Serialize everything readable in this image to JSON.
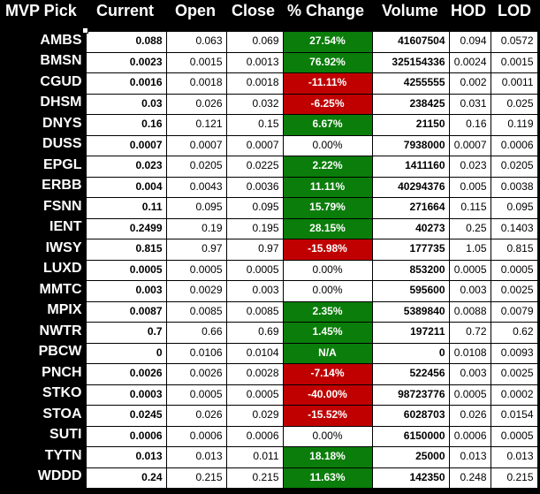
{
  "columns": [
    "MVP Pick",
    "Current",
    "Open",
    "Close",
    "% Change",
    "Volume",
    "HOD",
    "LOD"
  ],
  "colors": {
    "up": "#0a7d0a",
    "down": "#c00000",
    "header_bg": "#000000"
  },
  "rows": [
    {
      "sym": "AMBS",
      "cur": "0.088",
      "open": "0.063",
      "close": "0.069",
      "pct": "27.54%",
      "dir": "up",
      "vol": "41607504",
      "hod": "0.094",
      "lod": "0.0572"
    },
    {
      "sym": "BMSN",
      "cur": "0.0023",
      "open": "0.0015",
      "close": "0.0013",
      "pct": "76.92%",
      "dir": "up",
      "vol": "325154336",
      "hod": "0.0024",
      "lod": "0.0015"
    },
    {
      "sym": "CGUD",
      "cur": "0.0016",
      "open": "0.0018",
      "close": "0.0018",
      "pct": "-11.11%",
      "dir": "down",
      "vol": "4255555",
      "hod": "0.002",
      "lod": "0.0011"
    },
    {
      "sym": "DHSM",
      "cur": "0.03",
      "open": "0.026",
      "close": "0.032",
      "pct": "-6.25%",
      "dir": "down",
      "vol": "238425",
      "hod": "0.031",
      "lod": "0.025"
    },
    {
      "sym": "DNYS",
      "cur": "0.16",
      "open": "0.121",
      "close": "0.15",
      "pct": "6.67%",
      "dir": "up",
      "vol": "21150",
      "hod": "0.16",
      "lod": "0.119"
    },
    {
      "sym": "DUSS",
      "cur": "0.0007",
      "open": "0.0007",
      "close": "0.0007",
      "pct": "0.00%",
      "dir": "flat",
      "vol": "7938000",
      "hod": "0.0007",
      "lod": "0.0006"
    },
    {
      "sym": "EPGL",
      "cur": "0.023",
      "open": "0.0205",
      "close": "0.0225",
      "pct": "2.22%",
      "dir": "up",
      "vol": "1411160",
      "hod": "0.023",
      "lod": "0.0205"
    },
    {
      "sym": "ERBB",
      "cur": "0.004",
      "open": "0.0043",
      "close": "0.0036",
      "pct": "11.11%",
      "dir": "up",
      "vol": "40294376",
      "hod": "0.005",
      "lod": "0.0038"
    },
    {
      "sym": "FSNN",
      "cur": "0.11",
      "open": "0.095",
      "close": "0.095",
      "pct": "15.79%",
      "dir": "up",
      "vol": "271664",
      "hod": "0.115",
      "lod": "0.095"
    },
    {
      "sym": "IENT",
      "cur": "0.2499",
      "open": "0.19",
      "close": "0.195",
      "pct": "28.15%",
      "dir": "up",
      "vol": "40273",
      "hod": "0.25",
      "lod": "0.1403"
    },
    {
      "sym": "IWSY",
      "cur": "0.815",
      "open": "0.97",
      "close": "0.97",
      "pct": "-15.98%",
      "dir": "down",
      "vol": "177735",
      "hod": "1.05",
      "lod": "0.815"
    },
    {
      "sym": "LUXD",
      "cur": "0.0005",
      "open": "0.0005",
      "close": "0.0005",
      "pct": "0.00%",
      "dir": "flat",
      "vol": "853200",
      "hod": "0.0005",
      "lod": "0.0005"
    },
    {
      "sym": "MMTC",
      "cur": "0.003",
      "open": "0.0029",
      "close": "0.003",
      "pct": "0.00%",
      "dir": "flat",
      "vol": "595600",
      "hod": "0.003",
      "lod": "0.0025"
    },
    {
      "sym": "MPIX",
      "cur": "0.0087",
      "open": "0.0085",
      "close": "0.0085",
      "pct": "2.35%",
      "dir": "up",
      "vol": "5389840",
      "hod": "0.0088",
      "lod": "0.0079"
    },
    {
      "sym": "NWTR",
      "cur": "0.7",
      "open": "0.66",
      "close": "0.69",
      "pct": "1.45%",
      "dir": "up",
      "vol": "197211",
      "hod": "0.72",
      "lod": "0.62"
    },
    {
      "sym": "PBCW",
      "cur": "0",
      "open": "0.0106",
      "close": "0.0104",
      "pct": "N/A",
      "dir": "up",
      "vol": "0",
      "hod": "0.0108",
      "lod": "0.0093"
    },
    {
      "sym": "PNCH",
      "cur": "0.0026",
      "open": "0.0026",
      "close": "0.0028",
      "pct": "-7.14%",
      "dir": "down",
      "vol": "522456",
      "hod": "0.003",
      "lod": "0.0025"
    },
    {
      "sym": "STKO",
      "cur": "0.0003",
      "open": "0.0005",
      "close": "0.0005",
      "pct": "-40.00%",
      "dir": "down",
      "vol": "98723776",
      "hod": "0.0005",
      "lod": "0.0002"
    },
    {
      "sym": "STOA",
      "cur": "0.0245",
      "open": "0.026",
      "close": "0.029",
      "pct": "-15.52%",
      "dir": "down",
      "vol": "6028703",
      "hod": "0.026",
      "lod": "0.0154"
    },
    {
      "sym": "SUTI",
      "cur": "0.0006",
      "open": "0.0006",
      "close": "0.0006",
      "pct": "0.00%",
      "dir": "flat",
      "vol": "6150000",
      "hod": "0.0006",
      "lod": "0.0005"
    },
    {
      "sym": "TYTN",
      "cur": "0.013",
      "open": "0.013",
      "close": "0.011",
      "pct": "18.18%",
      "dir": "up",
      "vol": "25000",
      "hod": "0.013",
      "lod": "0.013"
    },
    {
      "sym": "WDDD",
      "cur": "0.24",
      "open": "0.215",
      "close": "0.215",
      "pct": "11.63%",
      "dir": "up",
      "vol": "142350",
      "hod": "0.248",
      "lod": "0.215"
    }
  ]
}
